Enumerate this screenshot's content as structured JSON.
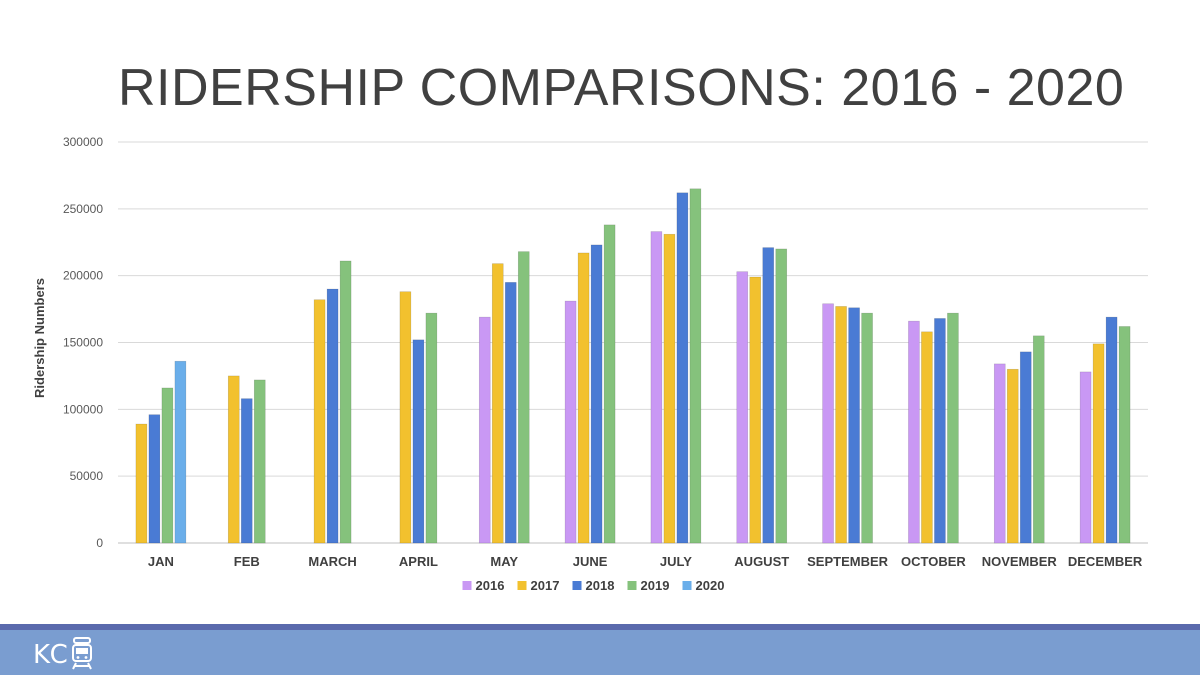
{
  "slide": {
    "title": "RIDERSHIP COMPARISONS: 2016 - 2020",
    "logo_text": "KC",
    "logo_icon": "streetcar-icon",
    "footer_colors": {
      "band": "#7a9dd0",
      "stripe": "#5a6aad"
    }
  },
  "chart_data": {
    "type": "bar",
    "title": "",
    "xlabel": "",
    "ylabel": "Ridership Numbers",
    "ylim": [
      0,
      300000
    ],
    "yticks": [
      0,
      50000,
      100000,
      150000,
      200000,
      250000,
      300000
    ],
    "grid": true,
    "legend_position": "bottom",
    "categories": [
      "JAN",
      "FEB",
      "MARCH",
      "APRIL",
      "MAY",
      "JUNE",
      "JULY",
      "AUGUST",
      "SEPTEMBER",
      "OCTOBER",
      "NOVEMBER",
      "DECEMBER"
    ],
    "series": [
      {
        "name": "2016",
        "color": "#c998f4",
        "values": [
          null,
          null,
          null,
          null,
          169000,
          181000,
          233000,
          203000,
          179000,
          166000,
          134000,
          128000
        ]
      },
      {
        "name": "2017",
        "color": "#f2c12e",
        "values": [
          89000,
          125000,
          182000,
          188000,
          209000,
          217000,
          231000,
          199000,
          177000,
          158000,
          130000,
          149000
        ]
      },
      {
        "name": "2018",
        "color": "#4a7bd4",
        "values": [
          96000,
          108000,
          190000,
          152000,
          195000,
          223000,
          262000,
          221000,
          176000,
          168000,
          143000,
          169000
        ]
      },
      {
        "name": "2019",
        "color": "#85c27c",
        "values": [
          116000,
          122000,
          211000,
          172000,
          218000,
          238000,
          265000,
          220000,
          172000,
          172000,
          155000,
          162000
        ]
      },
      {
        "name": "2020",
        "color": "#6aaeea",
        "values": [
          136000,
          null,
          null,
          null,
          null,
          null,
          null,
          null,
          null,
          null,
          null,
          null
        ]
      }
    ]
  }
}
